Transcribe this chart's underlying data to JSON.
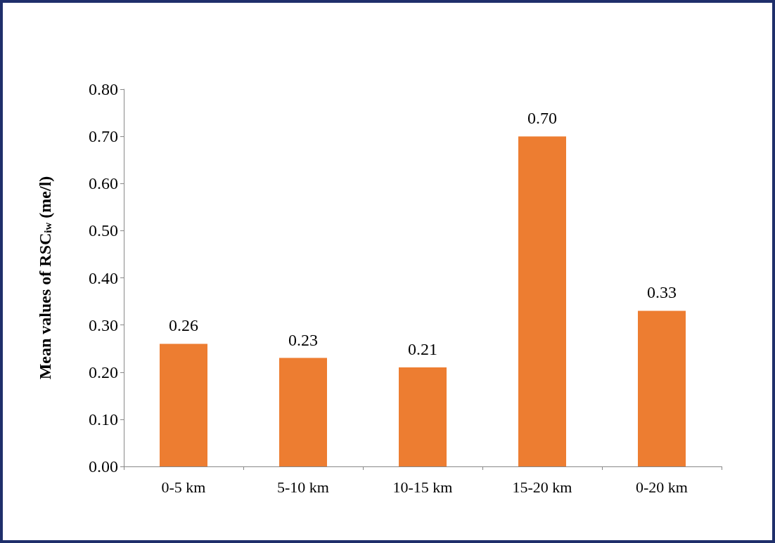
{
  "chart_data": {
    "type": "bar",
    "ylabel": "Mean values of RSC$_{iw}$ (me/l)",
    "categories": [
      "0-5 km",
      "5-10 km",
      "10-15 km",
      "15-20 km",
      "0-20 km"
    ],
    "values": [
      0.26,
      0.23,
      0.21,
      0.7,
      0.33
    ],
    "value_labels": [
      "0.26",
      "0.23",
      "0.21",
      "0.70",
      "0.33"
    ],
    "color": "#ed7d31",
    "ylim": [
      0,
      0.8
    ],
    "yticks": [
      {
        "value": 0,
        "label": "0.00"
      },
      {
        "value": 0.1,
        "label": "0.10"
      },
      {
        "value": 0.2,
        "label": "0.20"
      },
      {
        "value": 0.3,
        "label": "0.30"
      },
      {
        "value": 0.4,
        "label": "0.40"
      },
      {
        "value": 0.5,
        "label": "0.50"
      },
      {
        "value": 0.6,
        "label": "0.60"
      },
      {
        "value": 0.7,
        "label": "0.70"
      },
      {
        "value": 0.8,
        "label": "0.80"
      }
    ]
  }
}
